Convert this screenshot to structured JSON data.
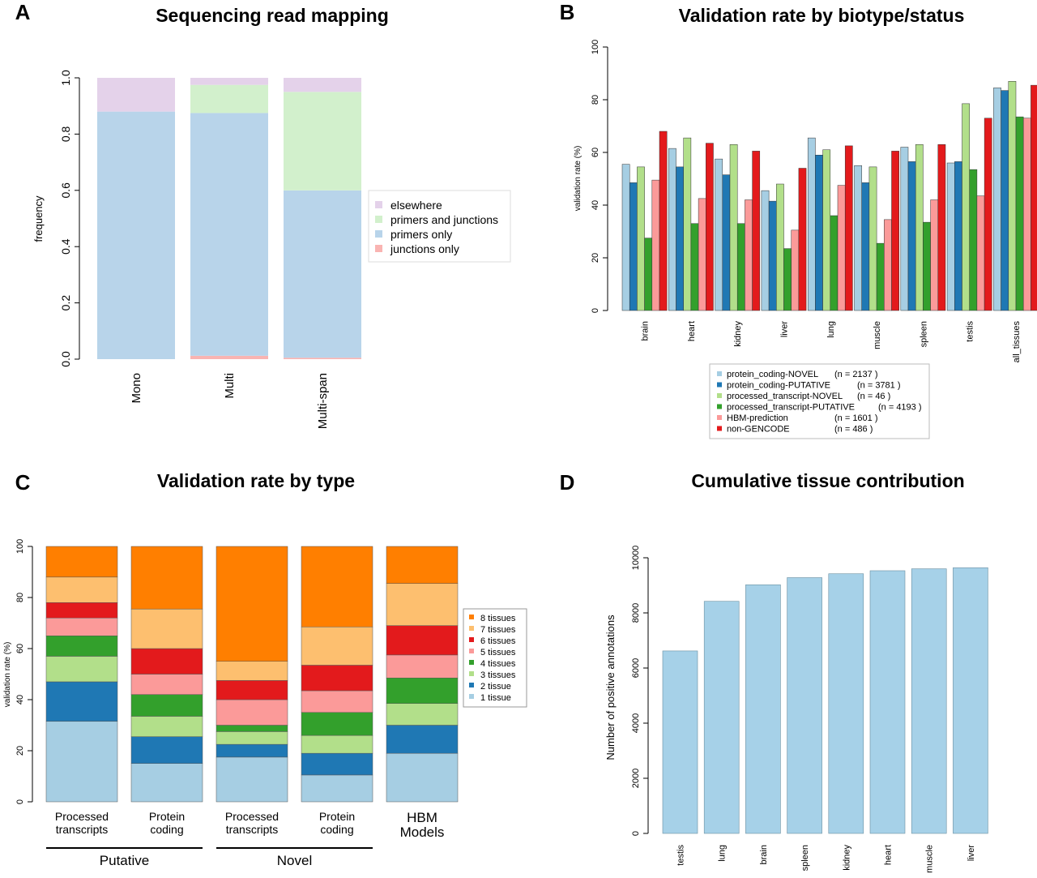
{
  "panels": {
    "A": {
      "letter": "A",
      "title": "Sequencing read mapping"
    },
    "B": {
      "letter": "B",
      "title": "Validation rate by biotype/status"
    },
    "C": {
      "letter": "C",
      "title": "Validation rate by type"
    },
    "D": {
      "letter": "D",
      "title": "Cumulative tissue contribution"
    }
  },
  "chart_data": [
    {
      "panel": "A",
      "type": "bar",
      "stacked": true,
      "title": "Sequencing read mapping",
      "xlabel": "",
      "ylabel": "frequency",
      "ylim": [
        0,
        1
      ],
      "yticks": [
        "0.0",
        "0.2",
        "0.4",
        "0.6",
        "0.8",
        "1.0"
      ],
      "categories": [
        "Mono",
        "Multi",
        "Multi-span"
      ],
      "series": [
        {
          "name": "junctions only",
          "color": "#f9b4b2",
          "values": [
            0.0,
            0.012,
            0.005
          ]
        },
        {
          "name": "primers only",
          "color": "#b8d4ea",
          "values": [
            0.88,
            0.863,
            0.595
          ]
        },
        {
          "name": "primers and junctions",
          "color": "#d2f0cc",
          "values": [
            0.0,
            0.1,
            0.35
          ]
        },
        {
          "name": "elsewhere",
          "color": "#e4d2ea",
          "values": [
            0.12,
            0.025,
            0.05
          ]
        }
      ],
      "legend_order": [
        "elsewhere",
        "primers and junctions",
        "primers only",
        "junctions only"
      ],
      "legend": "right"
    },
    {
      "panel": "B",
      "type": "bar",
      "title": "Validation rate by biotype/status",
      "xlabel": "",
      "ylabel": "validation rate (%)",
      "ylim": [
        0,
        100
      ],
      "yticks": [
        "0",
        "20",
        "40",
        "60",
        "80",
        "100"
      ],
      "categories": [
        "brain",
        "heart",
        "kidney",
        "liver",
        "lung",
        "muscle",
        "spleen",
        "testis",
        "all_tissues"
      ],
      "series": [
        {
          "name": "protein_coding-NOVEL",
          "n": "(n =  2137 )",
          "color": "#a6cee3",
          "values": [
            55.5,
            61.5,
            57.5,
            45.5,
            65.5,
            55,
            62,
            56,
            84.5
          ]
        },
        {
          "name": "protein_coding-PUTATIVE",
          "n": "(n =  3781 )",
          "color": "#1f78b4",
          "values": [
            48.5,
            54.5,
            51.5,
            41.5,
            59,
            48.5,
            56.5,
            56.5,
            83.5
          ]
        },
        {
          "name": "processed_transcript-NOVEL",
          "n": "(n =    46 )",
          "color": "#b2df8a",
          "values": [
            54.5,
            65.5,
            63,
            48,
            61,
            54.5,
            63,
            78.5,
            87
          ]
        },
        {
          "name": "processed_transcript-PUTATIVE",
          "n": "(n =  4193 )",
          "color": "#33a02c",
          "values": [
            27.5,
            33,
            33,
            23.5,
            36,
            25.5,
            33.5,
            53.5,
            73.5
          ]
        },
        {
          "name": "HBM-prediction",
          "n": "(n =  1601 )",
          "color": "#fb9a99",
          "values": [
            49.5,
            42.5,
            42,
            30.5,
            47.5,
            34.5,
            42,
            43.5,
            73
          ]
        },
        {
          "name": "non-GENCODE",
          "n": "(n =   486 )",
          "color": "#e31a1c",
          "values": [
            68,
            63.5,
            60.5,
            54,
            62.5,
            60.5,
            63,
            73,
            85.5
          ]
        }
      ],
      "legend": "bottom"
    },
    {
      "panel": "C",
      "type": "bar",
      "stacked": true,
      "title": "Validation rate by type",
      "xlabel": "",
      "ylabel": "validation rate (%)",
      "ylim": [
        0,
        100
      ],
      "yticks": [
        "0",
        "20",
        "40",
        "60",
        "80",
        "100"
      ],
      "categories": [
        [
          "Processed",
          "transcripts"
        ],
        [
          "Protein",
          "coding"
        ],
        [
          "Processed",
          "transcripts"
        ],
        [
          "Protein",
          "coding"
        ],
        [
          "HBM",
          "Models"
        ]
      ],
      "groups": [
        {
          "label": "Putative",
          "members": [
            0,
            1
          ]
        },
        {
          "label": "Novel",
          "members": [
            2,
            3
          ]
        }
      ],
      "series": [
        {
          "name": "1 tissue",
          "color": "#a6cee3",
          "values": [
            31.5,
            15,
            17.5,
            10.5,
            19
          ]
        },
        {
          "name": "2 tissue",
          "color": "#1f78b4",
          "values": [
            15.5,
            10.5,
            5,
            8.5,
            11
          ]
        },
        {
          "name": "3 tissues",
          "color": "#b2df8a",
          "values": [
            10,
            8,
            5,
            7,
            8.5
          ]
        },
        {
          "name": "4 tissues",
          "color": "#33a02c",
          "values": [
            8,
            8.5,
            2.5,
            9,
            10
          ]
        },
        {
          "name": "5 tissues",
          "color": "#fb9a99",
          "values": [
            7,
            8,
            10,
            8.5,
            9
          ]
        },
        {
          "name": "6 tissues",
          "color": "#e31a1c",
          "values": [
            6,
            10,
            7.5,
            10,
            11.5
          ]
        },
        {
          "name": "7 tissues",
          "color": "#fdbf6f",
          "values": [
            10,
            15.5,
            7.5,
            15,
            16.5
          ]
        },
        {
          "name": "8 tissues",
          "color": "#ff7f00",
          "values": [
            12,
            24.5,
            45,
            31.5,
            14.5
          ]
        }
      ],
      "legend": "right"
    },
    {
      "panel": "D",
      "type": "bar",
      "title": "Cumulative tissue contribution",
      "xlabel": "",
      "ylabel": "Number of positive annotations",
      "ylim": [
        0,
        10000
      ],
      "yticks": [
        "0",
        "2000",
        "4000",
        "6000",
        "8000",
        "10000"
      ],
      "categories": [
        "testis",
        "lung",
        "brain",
        "spleen",
        "kidney",
        "heart",
        "muscle",
        "liver"
      ],
      "values": [
        6620,
        8420,
        9020,
        9280,
        9420,
        9530,
        9600,
        9640
      ],
      "color": "#a6d1e8"
    }
  ]
}
